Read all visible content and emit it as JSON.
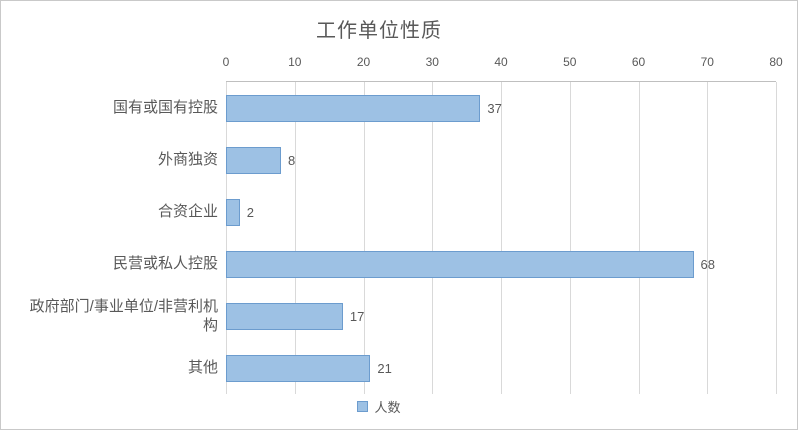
{
  "chart_data": {
    "type": "bar",
    "orientation": "horizontal",
    "title": "工作单位性质",
    "categories": [
      "国有或国有控股",
      "外商独资",
      "合资企业",
      "民营或私人控股",
      "政府部门/事业单位/非营利机构",
      "其他"
    ],
    "values": [
      37,
      8,
      2,
      68,
      17,
      21
    ],
    "series_name": "人数",
    "xlim": [
      0,
      80
    ],
    "xticks": [
      0,
      10,
      20,
      30,
      40,
      50,
      60,
      70,
      80
    ],
    "grid": "vertical",
    "legend_position": "bottom",
    "bar_fill": "#9dc1e4",
    "bar_border": "#6c9cce",
    "text_color": "#595959",
    "gridline_color": "#d9d9d9"
  }
}
